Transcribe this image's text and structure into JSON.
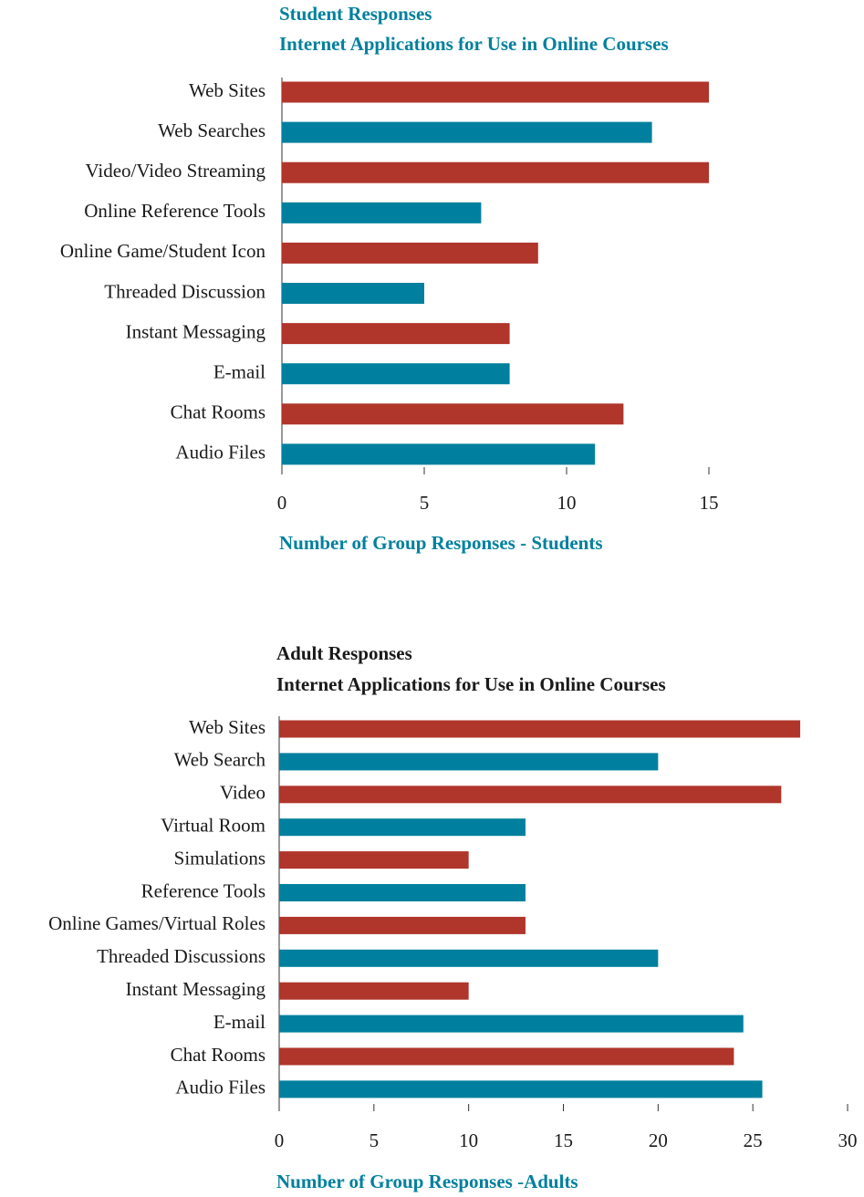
{
  "chart_data": [
    {
      "type": "barh",
      "title": "Student Responses",
      "subtitle": "Internet Applications for Use in Online Courses",
      "title_color": "#00809e",
      "xlabel": "Number of Group Responses - Students",
      "categories": [
        "Web Sites",
        "Web Searches",
        "Video/Video Streaming",
        "Online Reference Tools",
        "Online Game/Student Icon",
        "Threaded Discussion",
        "Instant Messaging",
        "E-mail",
        "Chat Rooms",
        "Audio Files"
      ],
      "values": [
        15,
        13,
        15,
        7,
        9,
        5,
        8,
        8,
        12,
        11
      ],
      "colors": [
        "#b0352b",
        "#00809e",
        "#b0352b",
        "#00809e",
        "#b0352b",
        "#00809e",
        "#b0352b",
        "#00809e",
        "#b0352b",
        "#00809e"
      ],
      "xlim": [
        0,
        15
      ],
      "xticks": [
        0,
        5,
        10,
        15
      ]
    },
    {
      "type": "barh",
      "title": "Adult Responses",
      "subtitle": "Internet Applications for Use in Online Courses",
      "title_color": "#1a1a1a",
      "xlabel": "Number of Group Responses -Adults",
      "categories": [
        "Web Sites",
        "Web Search",
        "Video",
        "Virtual Room",
        "Simulations",
        "Reference Tools",
        "Online Games/Virtual Roles",
        "Threaded Discussions",
        "Instant Messaging",
        "E-mail",
        "Chat Rooms",
        "Audio Files"
      ],
      "values": [
        27.5,
        20,
        26.5,
        13,
        10,
        13,
        13,
        20,
        10,
        24.5,
        24,
        25.5
      ],
      "colors": [
        "#b0352b",
        "#00809e",
        "#b0352b",
        "#00809e",
        "#b0352b",
        "#00809e",
        "#b0352b",
        "#00809e",
        "#b0352b",
        "#00809e",
        "#b0352b",
        "#00809e"
      ],
      "xlim": [
        0,
        30
      ],
      "xticks": [
        0,
        5,
        10,
        15,
        20,
        25,
        30
      ]
    }
  ]
}
